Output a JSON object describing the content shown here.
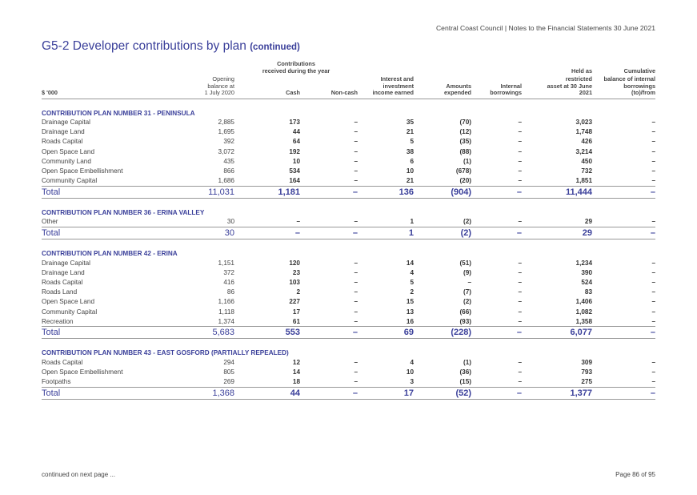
{
  "header": "Central Coast Council | Notes to the Financial Statements 30 June 2021",
  "title": "G5-2   Developer contributions by plan",
  "title_suffix": "(continued)",
  "columns": {
    "unit": "$ '000",
    "opening_1": "Opening",
    "opening_2": "balance at",
    "opening_3": "1 July 2020",
    "contrib_1": "Contributions",
    "contrib_2": "received during the year",
    "cash": "Cash",
    "noncash": "Non-cash",
    "interest_1": "Interest and",
    "interest_2": "investment",
    "interest_3": "income earned",
    "amounts_1": "Amounts",
    "amounts_2": "expended",
    "internal_1": "Internal",
    "internal_2": "borrowings",
    "held_1": "Held as",
    "held_2": "restricted",
    "held_3": "asset at 30 June",
    "held_4": "2021",
    "cum_1": "Cumulative",
    "cum_2": "balance of internal",
    "cum_3": "borrowings",
    "cum_4": "(to)/from"
  },
  "sections": [
    {
      "name": "CONTRIBUTION PLAN NUMBER 31 - PENINSULA",
      "rows": [
        [
          "Drainage Capital",
          "2,885",
          "173",
          "–",
          "35",
          "(70)",
          "–",
          "3,023",
          "–"
        ],
        [
          "Drainage Land",
          "1,695",
          "44",
          "–",
          "21",
          "(12)",
          "–",
          "1,748",
          "–"
        ],
        [
          "Roads Capital",
          "392",
          "64",
          "–",
          "5",
          "(35)",
          "–",
          "426",
          "–"
        ],
        [
          "Open Space Land",
          "3,072",
          "192",
          "–",
          "38",
          "(88)",
          "–",
          "3,214",
          "–"
        ],
        [
          "Community Land",
          "435",
          "10",
          "–",
          "6",
          "(1)",
          "–",
          "450",
          "–"
        ],
        [
          "Open Space Embellishment",
          "866",
          "534",
          "–",
          "10",
          "(678)",
          "–",
          "732",
          "–"
        ],
        [
          "Community Capital",
          "1,686",
          "164",
          "–",
          "21",
          "(20)",
          "–",
          "1,851",
          "–"
        ]
      ],
      "total": [
        "Total",
        "11,031",
        "1,181",
        "–",
        "136",
        "(904)",
        "–",
        "11,444",
        "–"
      ]
    },
    {
      "name": "CONTRIBUTION PLAN NUMBER 36 - ERINA VALLEY",
      "rows": [
        [
          "Other",
          "30",
          "–",
          "–",
          "1",
          "(2)",
          "–",
          "29",
          "–"
        ]
      ],
      "total": [
        "Total",
        "30",
        "–",
        "–",
        "1",
        "(2)",
        "–",
        "29",
        "–"
      ]
    },
    {
      "name": "CONTRIBUTION PLAN NUMBER 42 - ERINA",
      "rows": [
        [
          "Drainage Capital",
          "1,151",
          "120",
          "–",
          "14",
          "(51)",
          "–",
          "1,234",
          "–"
        ],
        [
          "Drainage Land",
          "372",
          "23",
          "–",
          "4",
          "(9)",
          "–",
          "390",
          "–"
        ],
        [
          "Roads Capital",
          "416",
          "103",
          "–",
          "5",
          "–",
          "–",
          "524",
          "–"
        ],
        [
          "Roads Land",
          "86",
          "2",
          "–",
          "2",
          "(7)",
          "–",
          "83",
          "–"
        ],
        [
          "Open Space Land",
          "1,166",
          "227",
          "–",
          "15",
          "(2)",
          "–",
          "1,406",
          "–"
        ],
        [
          "Community Capital",
          "1,118",
          "17",
          "–",
          "13",
          "(66)",
          "–",
          "1,082",
          "–"
        ],
        [
          "Recreation",
          "1,374",
          "61",
          "–",
          "16",
          "(93)",
          "–",
          "1,358",
          "–"
        ]
      ],
      "total": [
        "Total",
        "5,683",
        "553",
        "–",
        "69",
        "(228)",
        "–",
        "6,077",
        "–"
      ]
    },
    {
      "name": "CONTRIBUTION PLAN NUMBER 43 - EAST GOSFORD (PARTIALLY REPEALED)",
      "rows": [
        [
          "Roads Capital",
          "294",
          "12",
          "–",
          "4",
          "(1)",
          "–",
          "309",
          "–"
        ],
        [
          "Open Space Embellishment",
          "805",
          "14",
          "–",
          "10",
          "(36)",
          "–",
          "793",
          "–"
        ],
        [
          "Footpaths",
          "269",
          "18",
          "–",
          "3",
          "(15)",
          "–",
          "275",
          "–"
        ]
      ],
      "total": [
        "Total",
        "1,368",
        "44",
        "–",
        "17",
        "(52)",
        "–",
        "1,377",
        "–"
      ]
    }
  ],
  "footer_left": "continued on next page ...",
  "footer_right": "Page 86 of 95"
}
